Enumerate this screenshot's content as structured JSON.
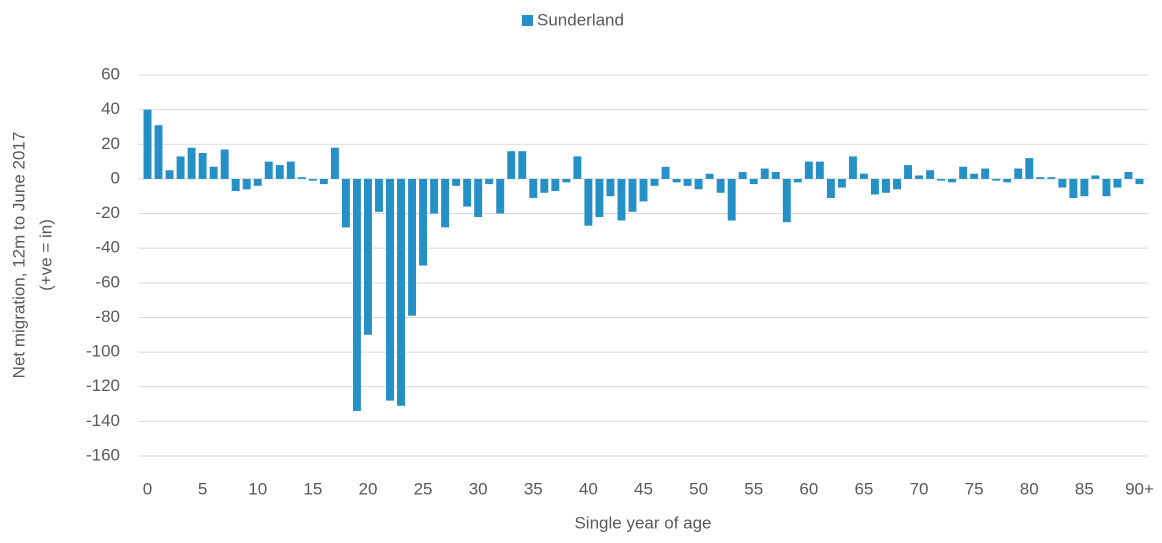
{
  "chart_data": {
    "type": "bar",
    "legend_position": "top",
    "y_label": [
      "Net migration, 12m to June 2017",
      "(+ve = in)"
    ],
    "x_label": "Single year of age",
    "categories": [
      "0",
      null,
      null,
      null,
      null,
      "5",
      null,
      null,
      null,
      null,
      "10",
      null,
      null,
      null,
      null,
      "15",
      null,
      null,
      null,
      null,
      "20",
      null,
      null,
      null,
      null,
      "25",
      null,
      null,
      null,
      null,
      "30",
      null,
      null,
      null,
      null,
      "35",
      null,
      null,
      null,
      null,
      "40",
      null,
      null,
      null,
      null,
      "45",
      null,
      null,
      null,
      null,
      "50",
      null,
      null,
      null,
      null,
      "55",
      null,
      null,
      null,
      null,
      "60",
      null,
      null,
      null,
      null,
      "65",
      null,
      null,
      null,
      null,
      "70",
      null,
      null,
      null,
      null,
      "75",
      null,
      null,
      null,
      null,
      "80",
      null,
      null,
      null,
      null,
      "85",
      null,
      null,
      null,
      null,
      "90+"
    ],
    "series": [
      {
        "name": "Sunderland",
        "color": "#2590c6",
        "values": [
          40,
          31,
          5,
          13,
          18,
          15,
          7,
          17,
          -7,
          -6,
          -4,
          10,
          8,
          10,
          1,
          -1,
          -3,
          18,
          -28,
          -134,
          -90,
          -19,
          -128,
          -131,
          -79,
          -50,
          -20,
          -28,
          -4,
          -16,
          -22,
          -3,
          -20,
          16,
          16,
          -11,
          -8,
          -7,
          -2,
          13,
          -27,
          -22,
          -10,
          -24,
          -19,
          -13,
          -4,
          7,
          -2,
          -4,
          -6,
          3,
          -8,
          -24,
          4,
          -3,
          6,
          4,
          -25,
          -2,
          10,
          10,
          -11,
          -5,
          13,
          3,
          -9,
          -8,
          -6,
          8,
          2,
          5,
          -1,
          -2,
          7,
          3,
          6,
          -1,
          -2,
          6,
          12,
          1,
          1,
          -5,
          -11,
          -10,
          2,
          -10,
          -5,
          4,
          -3
        ]
      }
    ],
    "ylim": [
      -160,
      60
    ],
    "yticks": [
      -160,
      -140,
      -120,
      -100,
      -80,
      -60,
      -40,
      -20,
      0,
      20,
      40,
      60
    ],
    "grid": true
  }
}
